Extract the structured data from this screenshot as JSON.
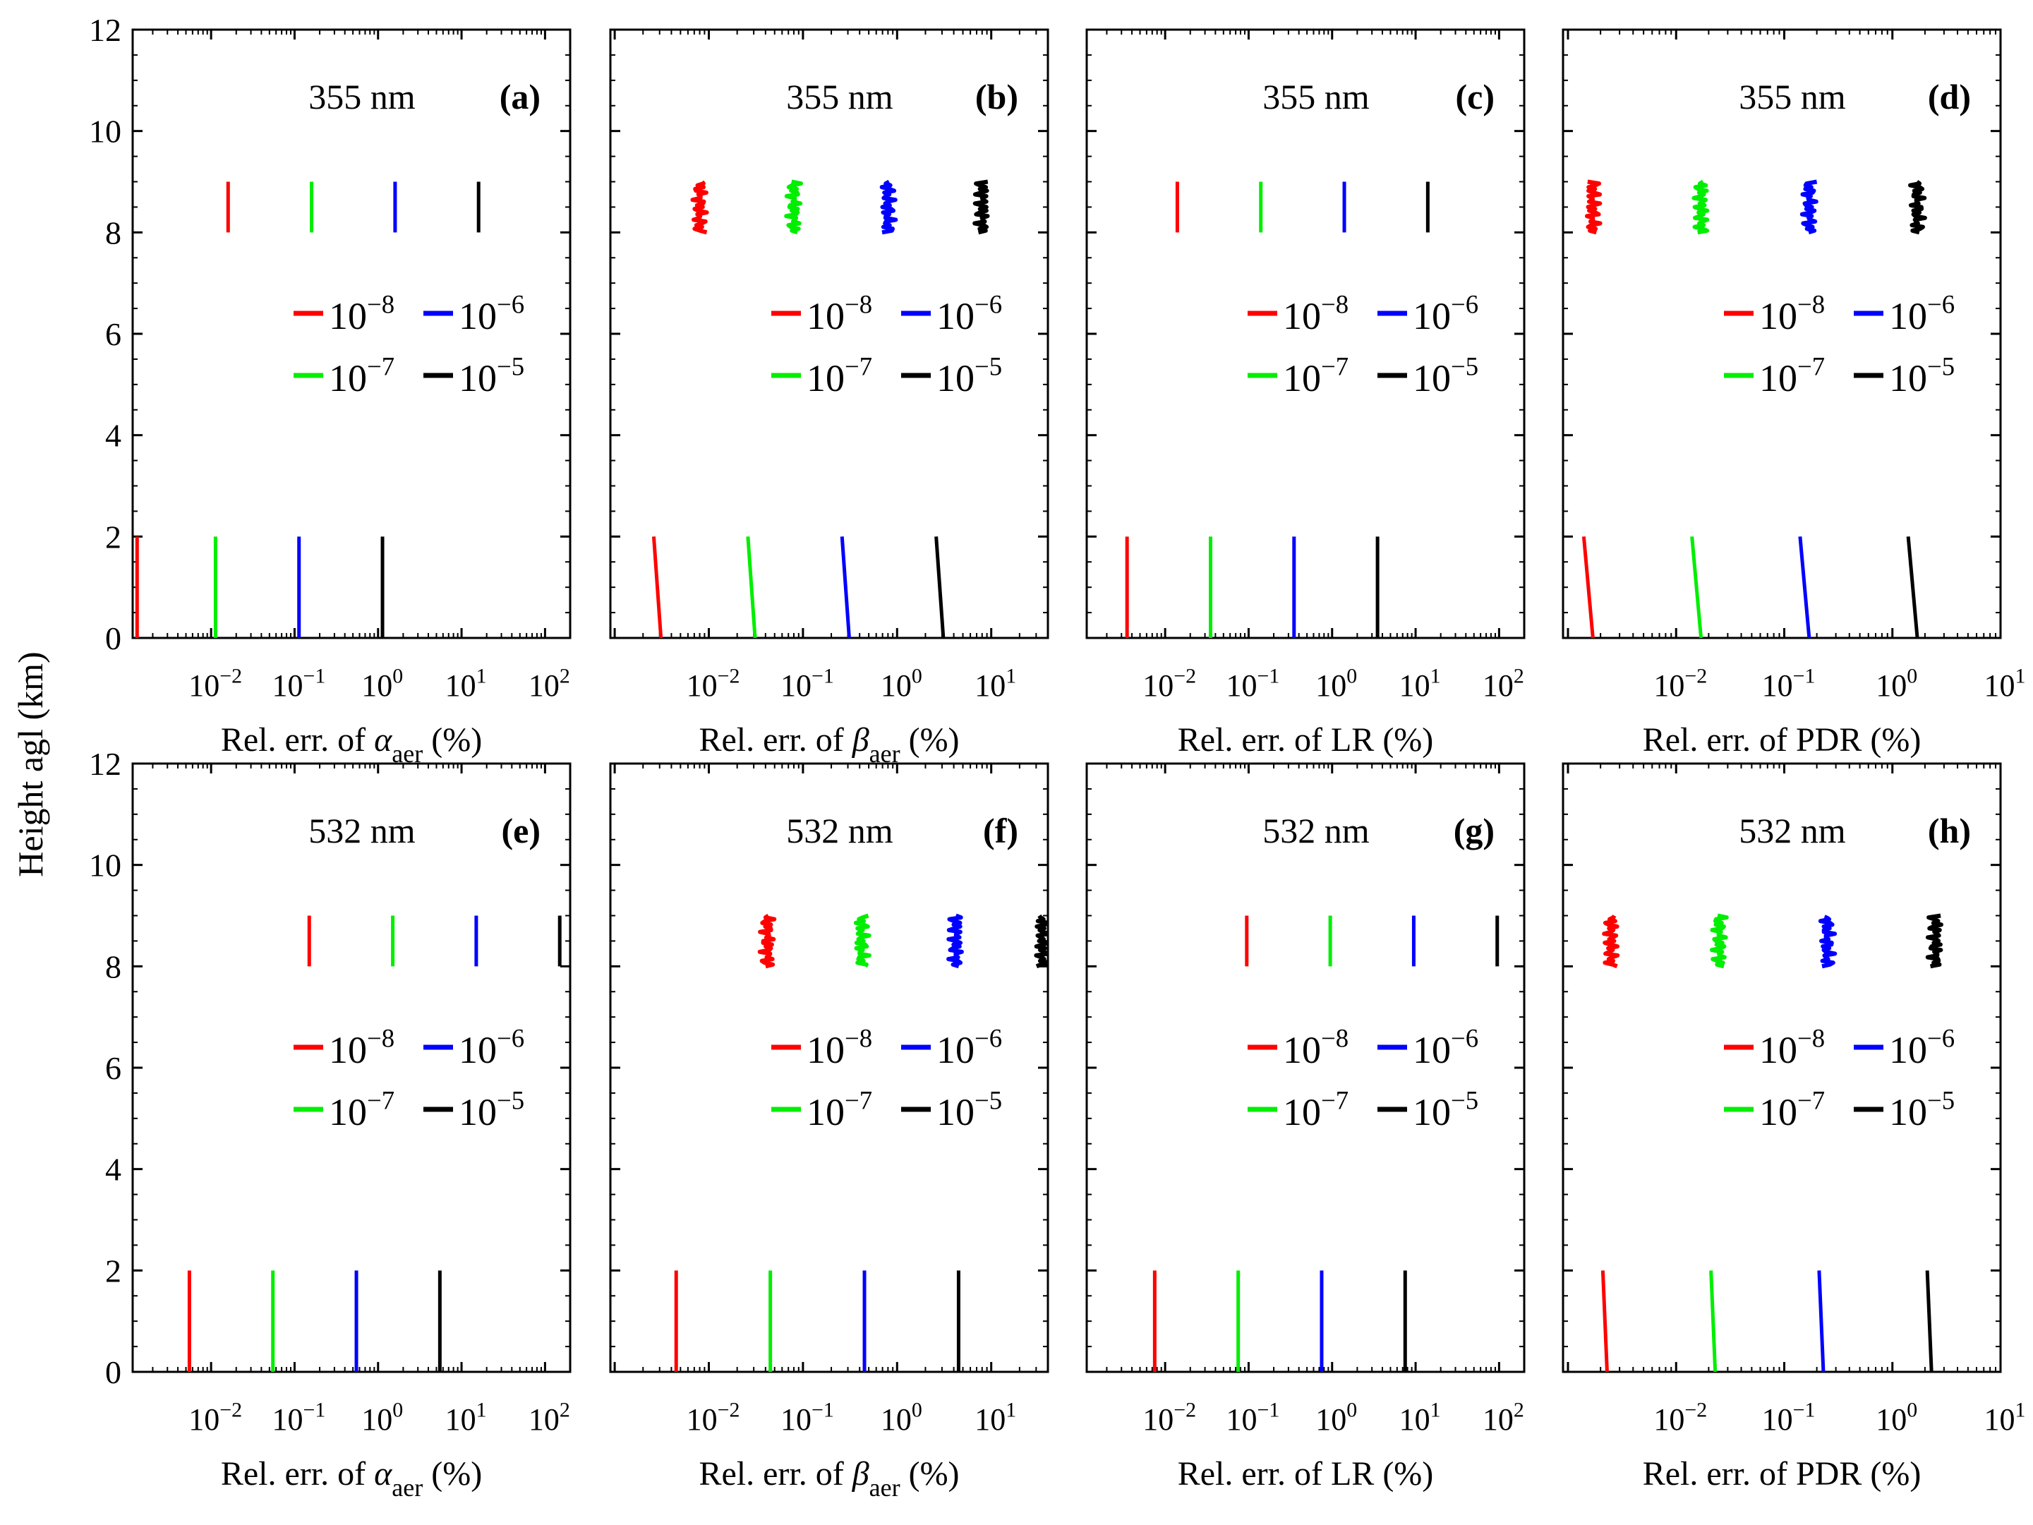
{
  "figure": {
    "y_axis_label": "Height agl (km)",
    "series_colors": {
      "1e-8": "#ff0000",
      "1e-7": "#00ee00",
      "1e-6": "#0000ff",
      "1e-5": "#000000"
    }
  },
  "chart_data": [
    {
      "id": "a",
      "type": "line",
      "panel_label": "(a)",
      "wavelength": "355 nm",
      "xlabel_prefix": "Rel. err. of ",
      "xlabel_symbol": "α",
      "xlabel_sub": "aer",
      "xlabel_suffix": " (%)",
      "xscale": "log",
      "xlim": [
        0.00115,
        200
      ],
      "x_ticks": [
        0.01,
        0.1,
        1,
        10,
        100
      ],
      "x_tick_labels": [
        "10^-2",
        "10^-1",
        "10^0",
        "10^1",
        "10^2"
      ],
      "ylim": [
        0,
        12
      ],
      "y_ticks": [
        0,
        2,
        4,
        6,
        8,
        10,
        12
      ],
      "legend": [
        {
          "sup": "−8",
          "base": "10",
          "key": "1e-8"
        },
        {
          "sup": "−6",
          "base": "10",
          "key": "1e-6"
        },
        {
          "sup": "−7",
          "base": "10",
          "key": "1e-7"
        },
        {
          "sup": "−5",
          "base": "10",
          "key": "1e-5"
        }
      ],
      "series": [
        {
          "name": "1e-8",
          "segments": [
            {
              "x0": 0.0013,
              "x1": 0.0013,
              "y0": 0,
              "y1": 2
            },
            {
              "x0": 0.016,
              "x1": 0.016,
              "y0": 8,
              "y1": 9
            }
          ]
        },
        {
          "name": "1e-7",
          "segments": [
            {
              "x0": 0.0113,
              "x1": 0.0113,
              "y0": 0,
              "y1": 2
            },
            {
              "x0": 0.16,
              "x1": 0.16,
              "y0": 8,
              "y1": 9
            }
          ]
        },
        {
          "name": "1e-6",
          "segments": [
            {
              "x0": 0.113,
              "x1": 0.113,
              "y0": 0,
              "y1": 2
            },
            {
              "x0": 1.6,
              "x1": 1.6,
              "y0": 8,
              "y1": 9
            }
          ]
        },
        {
          "name": "1e-5",
          "segments": [
            {
              "x0": 1.13,
              "x1": 1.13,
              "y0": 0,
              "y1": 2
            },
            {
              "x0": 16,
              "x1": 16,
              "y0": 8,
              "y1": 9
            }
          ]
        }
      ]
    },
    {
      "id": "b",
      "type": "line",
      "panel_label": "(b)",
      "wavelength": "355 nm",
      "xlabel_prefix": "Rel. err. of ",
      "xlabel_symbol": "β",
      "xlabel_sub": "aer",
      "xlabel_suffix": " (%)",
      "xscale": "log",
      "xlim": [
        0.0009,
        40
      ],
      "x_ticks": [
        0.01,
        0.1,
        1,
        10
      ],
      "x_tick_labels": [
        "10^-2",
        "10^-1",
        "10^0",
        "10^1"
      ],
      "ylim": [
        0,
        12
      ],
      "y_ticks": [
        0,
        2,
        4,
        6,
        8,
        10,
        12
      ],
      "legend": [
        {
          "sup": "−8",
          "base": "10",
          "key": "1e-8"
        },
        {
          "sup": "−6",
          "base": "10",
          "key": "1e-6"
        },
        {
          "sup": "−7",
          "base": "10",
          "key": "1e-7"
        },
        {
          "sup": "−5",
          "base": "10",
          "key": "1e-5"
        }
      ],
      "series": [
        {
          "name": "1e-8",
          "segments": [
            {
              "x0": 0.0031,
              "x1": 0.0026,
              "y0": 0,
              "y1": 2
            },
            {
              "x0": 0.008,
              "x1": 0.008,
              "y0": 8,
              "y1": 9,
              "jitter": true
            }
          ]
        },
        {
          "name": "1e-7",
          "segments": [
            {
              "x0": 0.031,
              "x1": 0.026,
              "y0": 0,
              "y1": 2
            },
            {
              "x0": 0.08,
              "x1": 0.08,
              "y0": 8,
              "y1": 9,
              "jitter": true
            }
          ]
        },
        {
          "name": "1e-6",
          "segments": [
            {
              "x0": 0.31,
              "x1": 0.26,
              "y0": 0,
              "y1": 2
            },
            {
              "x0": 0.8,
              "x1": 0.8,
              "y0": 8,
              "y1": 9,
              "jitter": true
            }
          ]
        },
        {
          "name": "1e-5",
          "segments": [
            {
              "x0": 3.1,
              "x1": 2.6,
              "y0": 0,
              "y1": 2
            },
            {
              "x0": 8,
              "x1": 8,
              "y0": 8,
              "y1": 9,
              "jitter": true
            }
          ]
        }
      ]
    },
    {
      "id": "c",
      "type": "line",
      "panel_label": "(c)",
      "wavelength": "355 nm",
      "xlabel_prefix": "Rel. err. of LR (%)",
      "xlabel_symbol": "",
      "xlabel_sub": "",
      "xlabel_suffix": "",
      "xscale": "log",
      "xlim": [
        0.00115,
        200
      ],
      "x_ticks": [
        0.01,
        0.1,
        1,
        10,
        100
      ],
      "x_tick_labels": [
        "10^-2",
        "10^-1",
        "10^0",
        "10^1",
        "10^2"
      ],
      "ylim": [
        0,
        12
      ],
      "y_ticks": [
        0,
        2,
        4,
        6,
        8,
        10,
        12
      ],
      "legend": [
        {
          "sup": "−8",
          "base": "10",
          "key": "1e-8"
        },
        {
          "sup": "−6",
          "base": "10",
          "key": "1e-6"
        },
        {
          "sup": "−7",
          "base": "10",
          "key": "1e-7"
        },
        {
          "sup": "−5",
          "base": "10",
          "key": "1e-5"
        }
      ],
      "series": [
        {
          "name": "1e-8",
          "segments": [
            {
              "x0": 0.0035,
              "x1": 0.0035,
              "y0": 0,
              "y1": 2
            },
            {
              "x0": 0.014,
              "x1": 0.014,
              "y0": 8,
              "y1": 9
            }
          ]
        },
        {
          "name": "1e-7",
          "segments": [
            {
              "x0": 0.035,
              "x1": 0.035,
              "y0": 0,
              "y1": 2
            },
            {
              "x0": 0.14,
              "x1": 0.14,
              "y0": 8,
              "y1": 9
            }
          ]
        },
        {
          "name": "1e-6",
          "segments": [
            {
              "x0": 0.35,
              "x1": 0.35,
              "y0": 0,
              "y1": 2
            },
            {
              "x0": 1.4,
              "x1": 1.4,
              "y0": 8,
              "y1": 9
            }
          ]
        },
        {
          "name": "1e-5",
          "segments": [
            {
              "x0": 3.5,
              "x1": 3.5,
              "y0": 0,
              "y1": 2
            },
            {
              "x0": 14,
              "x1": 14,
              "y0": 8,
              "y1": 9
            }
          ]
        }
      ]
    },
    {
      "id": "d",
      "type": "line",
      "panel_label": "(d)",
      "wavelength": "355 nm",
      "xlabel_prefix": "Rel. err. of PDR (%)",
      "xlabel_symbol": "",
      "xlabel_sub": "",
      "xlabel_suffix": "",
      "xscale": "log",
      "xlim": [
        0.0009,
        10
      ],
      "x_ticks": [
        0.01,
        0.1,
        1,
        10
      ],
      "x_tick_labels": [
        "10^-2",
        "10^-1",
        "10^0",
        "10^1"
      ],
      "ylim": [
        0,
        12
      ],
      "y_ticks": [
        0,
        2,
        4,
        6,
        8,
        10,
        12
      ],
      "legend": [
        {
          "sup": "−8",
          "base": "10",
          "key": "1e-8"
        },
        {
          "sup": "−6",
          "base": "10",
          "key": "1e-6"
        },
        {
          "sup": "−7",
          "base": "10",
          "key": "1e-7"
        },
        {
          "sup": "−5",
          "base": "10",
          "key": "1e-5"
        }
      ],
      "series": [
        {
          "name": "1e-8",
          "segments": [
            {
              "x0": 0.0017,
              "x1": 0.0014,
              "y0": 0,
              "y1": 2
            },
            {
              "x0": 0.0017,
              "x1": 0.0017,
              "y0": 8,
              "y1": 9,
              "jitter": true
            }
          ]
        },
        {
          "name": "1e-7",
          "segments": [
            {
              "x0": 0.017,
              "x1": 0.014,
              "y0": 0,
              "y1": 2
            },
            {
              "x0": 0.017,
              "x1": 0.017,
              "y0": 8,
              "y1": 9,
              "jitter": true
            }
          ]
        },
        {
          "name": "1e-6",
          "segments": [
            {
              "x0": 0.17,
              "x1": 0.14,
              "y0": 0,
              "y1": 2
            },
            {
              "x0": 0.17,
              "x1": 0.17,
              "y0": 8,
              "y1": 9,
              "jitter": true
            }
          ]
        },
        {
          "name": "1e-5",
          "segments": [
            {
              "x0": 1.7,
              "x1": 1.4,
              "y0": 0,
              "y1": 2
            },
            {
              "x0": 1.7,
              "x1": 1.7,
              "y0": 8,
              "y1": 9,
              "jitter": true
            }
          ]
        }
      ]
    },
    {
      "id": "e",
      "type": "line",
      "panel_label": "(e)",
      "wavelength": "532 nm",
      "xlabel_prefix": "Rel. err. of ",
      "xlabel_symbol": "α",
      "xlabel_sub": "aer",
      "xlabel_suffix": " (%)",
      "xscale": "log",
      "xlim": [
        0.00115,
        200
      ],
      "x_ticks": [
        0.01,
        0.1,
        1,
        10,
        100
      ],
      "x_tick_labels": [
        "10^-2",
        "10^-1",
        "10^0",
        "10^1",
        "10^2"
      ],
      "ylim": [
        0,
        12
      ],
      "y_ticks": [
        0,
        2,
        4,
        6,
        8,
        10,
        12
      ],
      "legend": [
        {
          "sup": "−8",
          "base": "10",
          "key": "1e-8"
        },
        {
          "sup": "−6",
          "base": "10",
          "key": "1e-6"
        },
        {
          "sup": "−7",
          "base": "10",
          "key": "1e-7"
        },
        {
          "sup": "−5",
          "base": "10",
          "key": "1e-5"
        }
      ],
      "series": [
        {
          "name": "1e-8",
          "segments": [
            {
              "x0": 0.0055,
              "x1": 0.0055,
              "y0": 0,
              "y1": 2
            },
            {
              "x0": 0.15,
              "x1": 0.15,
              "y0": 8,
              "y1": 9
            }
          ]
        },
        {
          "name": "1e-7",
          "segments": [
            {
              "x0": 0.055,
              "x1": 0.055,
              "y0": 0,
              "y1": 2
            },
            {
              "x0": 1.5,
              "x1": 1.5,
              "y0": 8,
              "y1": 9
            }
          ]
        },
        {
          "name": "1e-6",
          "segments": [
            {
              "x0": 0.55,
              "x1": 0.55,
              "y0": 0,
              "y1": 2
            },
            {
              "x0": 15,
              "x1": 15,
              "y0": 8,
              "y1": 9
            }
          ]
        },
        {
          "name": "1e-5",
          "segments": [
            {
              "x0": 5.5,
              "x1": 5.5,
              "y0": 0,
              "y1": 2
            },
            {
              "x0": 150,
              "x1": 150,
              "y0": 8,
              "y1": 9
            }
          ]
        }
      ]
    },
    {
      "id": "f",
      "type": "line",
      "panel_label": "(f)",
      "wavelength": "532 nm",
      "xlabel_prefix": "Rel. err. of ",
      "xlabel_symbol": "β",
      "xlabel_sub": "aer",
      "xlabel_suffix": " (%)",
      "xscale": "log",
      "xlim": [
        0.0009,
        40
      ],
      "x_ticks": [
        0.01,
        0.1,
        1,
        10
      ],
      "x_tick_labels": [
        "10^-2",
        "10^-1",
        "10^0",
        "10^1"
      ],
      "ylim": [
        0,
        12
      ],
      "y_ticks": [
        0,
        2,
        4,
        6,
        8,
        10,
        12
      ],
      "legend": [
        {
          "sup": "−8",
          "base": "10",
          "key": "1e-8"
        },
        {
          "sup": "−6",
          "base": "10",
          "key": "1e-6"
        },
        {
          "sup": "−7",
          "base": "10",
          "key": "1e-7"
        },
        {
          "sup": "−5",
          "base": "10",
          "key": "1e-5"
        }
      ],
      "series": [
        {
          "name": "1e-8",
          "segments": [
            {
              "x0": 0.0045,
              "x1": 0.0045,
              "y0": 0,
              "y1": 2
            },
            {
              "x0": 0.042,
              "x1": 0.042,
              "y0": 8,
              "y1": 9,
              "jitter": true
            }
          ]
        },
        {
          "name": "1e-7",
          "segments": [
            {
              "x0": 0.045,
              "x1": 0.045,
              "y0": 0,
              "y1": 2
            },
            {
              "x0": 0.42,
              "x1": 0.42,
              "y0": 8,
              "y1": 9,
              "jitter": true
            }
          ]
        },
        {
          "name": "1e-6",
          "segments": [
            {
              "x0": 0.45,
              "x1": 0.45,
              "y0": 0,
              "y1": 2
            },
            {
              "x0": 4.2,
              "x1": 4.2,
              "y0": 8,
              "y1": 9,
              "jitter": true
            }
          ]
        },
        {
          "name": "1e-5",
          "segments": [
            {
              "x0": 4.5,
              "x1": 4.5,
              "y0": 0,
              "y1": 2
            },
            {
              "x0": 35,
              "x1": 35,
              "y0": 8,
              "y1": 9,
              "jitter": true
            }
          ]
        }
      ]
    },
    {
      "id": "g",
      "type": "line",
      "panel_label": "(g)",
      "wavelength": "532 nm",
      "xlabel_prefix": "Rel. err. of LR (%)",
      "xlabel_symbol": "",
      "xlabel_sub": "",
      "xlabel_suffix": "",
      "xscale": "log",
      "xlim": [
        0.00115,
        200
      ],
      "x_ticks": [
        0.01,
        0.1,
        1,
        10,
        100
      ],
      "x_tick_labels": [
        "10^-2",
        "10^-1",
        "10^0",
        "10^1",
        "10^2"
      ],
      "ylim": [
        0,
        12
      ],
      "y_ticks": [
        0,
        2,
        4,
        6,
        8,
        10,
        12
      ],
      "legend": [
        {
          "sup": "−8",
          "base": "10",
          "key": "1e-8"
        },
        {
          "sup": "−6",
          "base": "10",
          "key": "1e-6"
        },
        {
          "sup": "−7",
          "base": "10",
          "key": "1e-7"
        },
        {
          "sup": "−5",
          "base": "10",
          "key": "1e-5"
        }
      ],
      "series": [
        {
          "name": "1e-8",
          "segments": [
            {
              "x0": 0.0075,
              "x1": 0.0075,
              "y0": 0,
              "y1": 2
            },
            {
              "x0": 0.095,
              "x1": 0.095,
              "y0": 8,
              "y1": 9
            }
          ]
        },
        {
          "name": "1e-7",
          "segments": [
            {
              "x0": 0.075,
              "x1": 0.075,
              "y0": 0,
              "y1": 2
            },
            {
              "x0": 0.95,
              "x1": 0.95,
              "y0": 8,
              "y1": 9
            }
          ]
        },
        {
          "name": "1e-6",
          "segments": [
            {
              "x0": 0.75,
              "x1": 0.75,
              "y0": 0,
              "y1": 2
            },
            {
              "x0": 9.5,
              "x1": 9.5,
              "y0": 8,
              "y1": 9
            }
          ]
        },
        {
          "name": "1e-5",
          "segments": [
            {
              "x0": 7.5,
              "x1": 7.5,
              "y0": 0,
              "y1": 2
            },
            {
              "x0": 95,
              "x1": 95,
              "y0": 8,
              "y1": 9
            }
          ]
        }
      ]
    },
    {
      "id": "h",
      "type": "line",
      "panel_label": "(h)",
      "wavelength": "532 nm",
      "xlabel_prefix": "Rel. err. of PDR (%)",
      "xlabel_symbol": "",
      "xlabel_sub": "",
      "xlabel_suffix": "",
      "xscale": "log",
      "xlim": [
        0.0009,
        10
      ],
      "x_ticks": [
        0.01,
        0.1,
        1,
        10
      ],
      "x_tick_labels": [
        "10^-2",
        "10^-1",
        "10^0",
        "10^1"
      ],
      "ylim": [
        0,
        12
      ],
      "y_ticks": [
        0,
        2,
        4,
        6,
        8,
        10,
        12
      ],
      "legend": [
        {
          "sup": "−8",
          "base": "10",
          "key": "1e-8"
        },
        {
          "sup": "−6",
          "base": "10",
          "key": "1e-6"
        },
        {
          "sup": "−7",
          "base": "10",
          "key": "1e-7"
        },
        {
          "sup": "−5",
          "base": "10",
          "key": "1e-5"
        }
      ],
      "series": [
        {
          "name": "1e-8",
          "segments": [
            {
              "x0": 0.0023,
              "x1": 0.0021,
              "y0": 0,
              "y1": 2
            },
            {
              "x0": 0.0025,
              "x1": 0.0025,
              "y0": 8,
              "y1": 9,
              "jitter": true
            }
          ]
        },
        {
          "name": "1e-7",
          "segments": [
            {
              "x0": 0.023,
              "x1": 0.021,
              "y0": 0,
              "y1": 2
            },
            {
              "x0": 0.025,
              "x1": 0.025,
              "y0": 8,
              "y1": 9,
              "jitter": true
            }
          ]
        },
        {
          "name": "1e-6",
          "segments": [
            {
              "x0": 0.23,
              "x1": 0.21,
              "y0": 0,
              "y1": 2
            },
            {
              "x0": 0.25,
              "x1": 0.25,
              "y0": 8,
              "y1": 9,
              "jitter": true
            }
          ]
        },
        {
          "name": "1e-5",
          "segments": [
            {
              "x0": 2.3,
              "x1": 2.1,
              "y0": 0,
              "y1": 2
            },
            {
              "x0": 2.5,
              "x1": 2.5,
              "y0": 8,
              "y1": 9,
              "jitter": true
            }
          ]
        }
      ]
    }
  ]
}
